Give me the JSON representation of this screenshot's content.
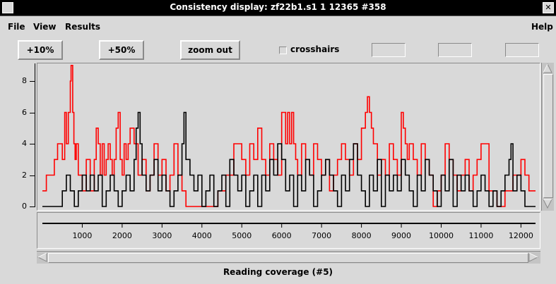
{
  "window": {
    "title": "Consistency display: zf22b1.s1 1 12365 #358"
  },
  "menubar": {
    "file": "File",
    "view": "View",
    "results": "Results",
    "help": "Help"
  },
  "toolbar": {
    "zoom10": "+10%",
    "zoom50": "+50%",
    "zoom_out": "zoom out",
    "crosshairs": "crosshairs",
    "crosshairs_checked": false
  },
  "caption": "Reading coverage (#5)",
  "colors": {
    "red_series": "#ff0000",
    "black_series": "#000000",
    "background": "#d9d9d9"
  },
  "chart_data": {
    "type": "line",
    "ylim": [
      0,
      9
    ],
    "xlim": [
      0,
      12365
    ],
    "yticks": [
      0,
      2,
      4,
      6,
      8
    ],
    "xticks": [
      1000,
      2000,
      3000,
      4000,
      5000,
      6000,
      7000,
      8000,
      9000,
      10000,
      11000,
      12000
    ],
    "series": [
      {
        "color": "#ff0000",
        "x": [
          0,
          100,
          300,
          380,
          500,
          560,
          600,
          650,
          700,
          720,
          760,
          790,
          820,
          850,
          900,
          1000,
          1100,
          1200,
          1300,
          1350,
          1400,
          1450,
          1500,
          1550,
          1600,
          1650,
          1700,
          1750,
          1800,
          1850,
          1900,
          1950,
          2000,
          2050,
          2100,
          2150,
          2200,
          2300,
          2400,
          2500,
          2600,
          2700,
          2800,
          2900,
          3000,
          3100,
          3200,
          3300,
          3400,
          3500,
          3600,
          3700,
          3800,
          3900,
          4000,
          4200,
          4400,
          4600,
          4800,
          5000,
          5100,
          5200,
          5300,
          5400,
          5500,
          5600,
          5700,
          5800,
          5900,
          6000,
          6100,
          6150,
          6200,
          6250,
          6300,
          6350,
          6400,
          6500,
          6600,
          6700,
          6800,
          6900,
          7000,
          7100,
          7200,
          7300,
          7400,
          7500,
          7600,
          7700,
          7800,
          7900,
          8000,
          8100,
          8150,
          8200,
          8250,
          8300,
          8400,
          8500,
          8600,
          8700,
          8800,
          8900,
          9000,
          9050,
          9100,
          9150,
          9200,
          9300,
          9400,
          9500,
          9600,
          9700,
          9800,
          9900,
          10000,
          10100,
          10200,
          10300,
          10400,
          10500,
          10600,
          10700,
          10800,
          10900,
          11000,
          11200,
          11400,
          11600,
          11800,
          12000,
          12100,
          12200,
          12365
        ],
        "y": [
          1,
          2,
          3,
          4,
          3,
          6,
          4,
          6,
          8,
          9,
          6,
          4,
          3,
          4,
          2,
          1,
          3,
          1,
          3,
          5,
          4,
          2,
          4,
          2,
          3,
          4,
          3,
          2,
          3,
          5,
          6,
          3,
          2,
          4,
          3,
          4,
          5,
          4,
          2,
          3,
          1,
          2,
          4,
          2,
          3,
          1,
          2,
          4,
          2,
          1,
          0,
          0,
          0,
          0,
          0,
          0,
          1,
          2,
          4,
          3,
          2,
          4,
          3,
          5,
          3,
          2,
          4,
          3,
          2,
          6,
          4,
          6,
          4,
          6,
          4,
          3,
          2,
          4,
          3,
          2,
          4,
          3,
          2,
          3,
          1,
          2,
          3,
          4,
          3,
          2,
          4,
          3,
          5,
          6,
          7,
          6,
          5,
          4,
          2,
          3,
          2,
          4,
          3,
          2,
          6,
          5,
          4,
          3,
          4,
          3,
          2,
          4,
          3,
          2,
          0,
          1,
          2,
          4,
          3,
          2,
          1,
          2,
          3,
          1,
          2,
          3,
          4,
          1,
          0,
          1,
          2,
          3,
          2,
          1,
          1
        ]
      },
      {
        "color": "#000000",
        "x": [
          0,
          200,
          400,
          500,
          600,
          700,
          800,
          900,
          1000,
          1100,
          1200,
          1300,
          1400,
          1500,
          1600,
          1700,
          1800,
          1900,
          2000,
          2100,
          2200,
          2300,
          2350,
          2400,
          2450,
          2500,
          2600,
          2700,
          2800,
          2900,
          3000,
          3100,
          3200,
          3300,
          3400,
          3500,
          3550,
          3600,
          3700,
          3800,
          3900,
          4000,
          4100,
          4200,
          4300,
          4400,
          4500,
          4600,
          4700,
          4800,
          4900,
          5000,
          5100,
          5200,
          5300,
          5400,
          5500,
          5600,
          5700,
          5800,
          5900,
          6000,
          6100,
          6200,
          6300,
          6400,
          6500,
          6600,
          6700,
          6800,
          6900,
          7000,
          7100,
          7200,
          7300,
          7400,
          7500,
          7600,
          7700,
          7800,
          7900,
          8000,
          8100,
          8200,
          8300,
          8400,
          8500,
          8600,
          8700,
          8800,
          8900,
          9000,
          9100,
          9200,
          9300,
          9400,
          9500,
          9600,
          9700,
          9800,
          9900,
          10000,
          10100,
          10200,
          10300,
          10400,
          10500,
          10600,
          10700,
          10800,
          10900,
          11000,
          11100,
          11200,
          11300,
          11400,
          11500,
          11600,
          11700,
          11750,
          11800,
          11900,
          12000,
          12100,
          12200,
          12365
        ],
        "y": [
          0,
          0,
          0,
          1,
          2,
          1,
          0,
          1,
          2,
          1,
          2,
          1,
          2,
          0,
          1,
          2,
          1,
          0,
          1,
          2,
          1,
          3,
          5,
          6,
          4,
          2,
          1,
          2,
          3,
          1,
          2,
          1,
          0,
          1,
          2,
          4,
          6,
          3,
          2,
          1,
          2,
          0,
          1,
          2,
          0,
          1,
          2,
          0,
          3,
          2,
          1,
          2,
          0,
          1,
          2,
          0,
          2,
          1,
          3,
          2,
          4,
          3,
          1,
          2,
          0,
          2,
          1,
          3,
          2,
          0,
          1,
          2,
          3,
          2,
          1,
          0,
          2,
          1,
          3,
          4,
          2,
          1,
          0,
          2,
          1,
          3,
          0,
          2,
          1,
          2,
          1,
          3,
          2,
          1,
          0,
          2,
          1,
          3,
          2,
          1,
          0,
          2,
          1,
          3,
          0,
          2,
          1,
          2,
          1,
          0,
          1,
          2,
          1,
          0,
          1,
          0,
          1,
          2,
          3,
          4,
          1,
          2,
          1,
          0,
          0,
          0
        ]
      }
    ]
  }
}
